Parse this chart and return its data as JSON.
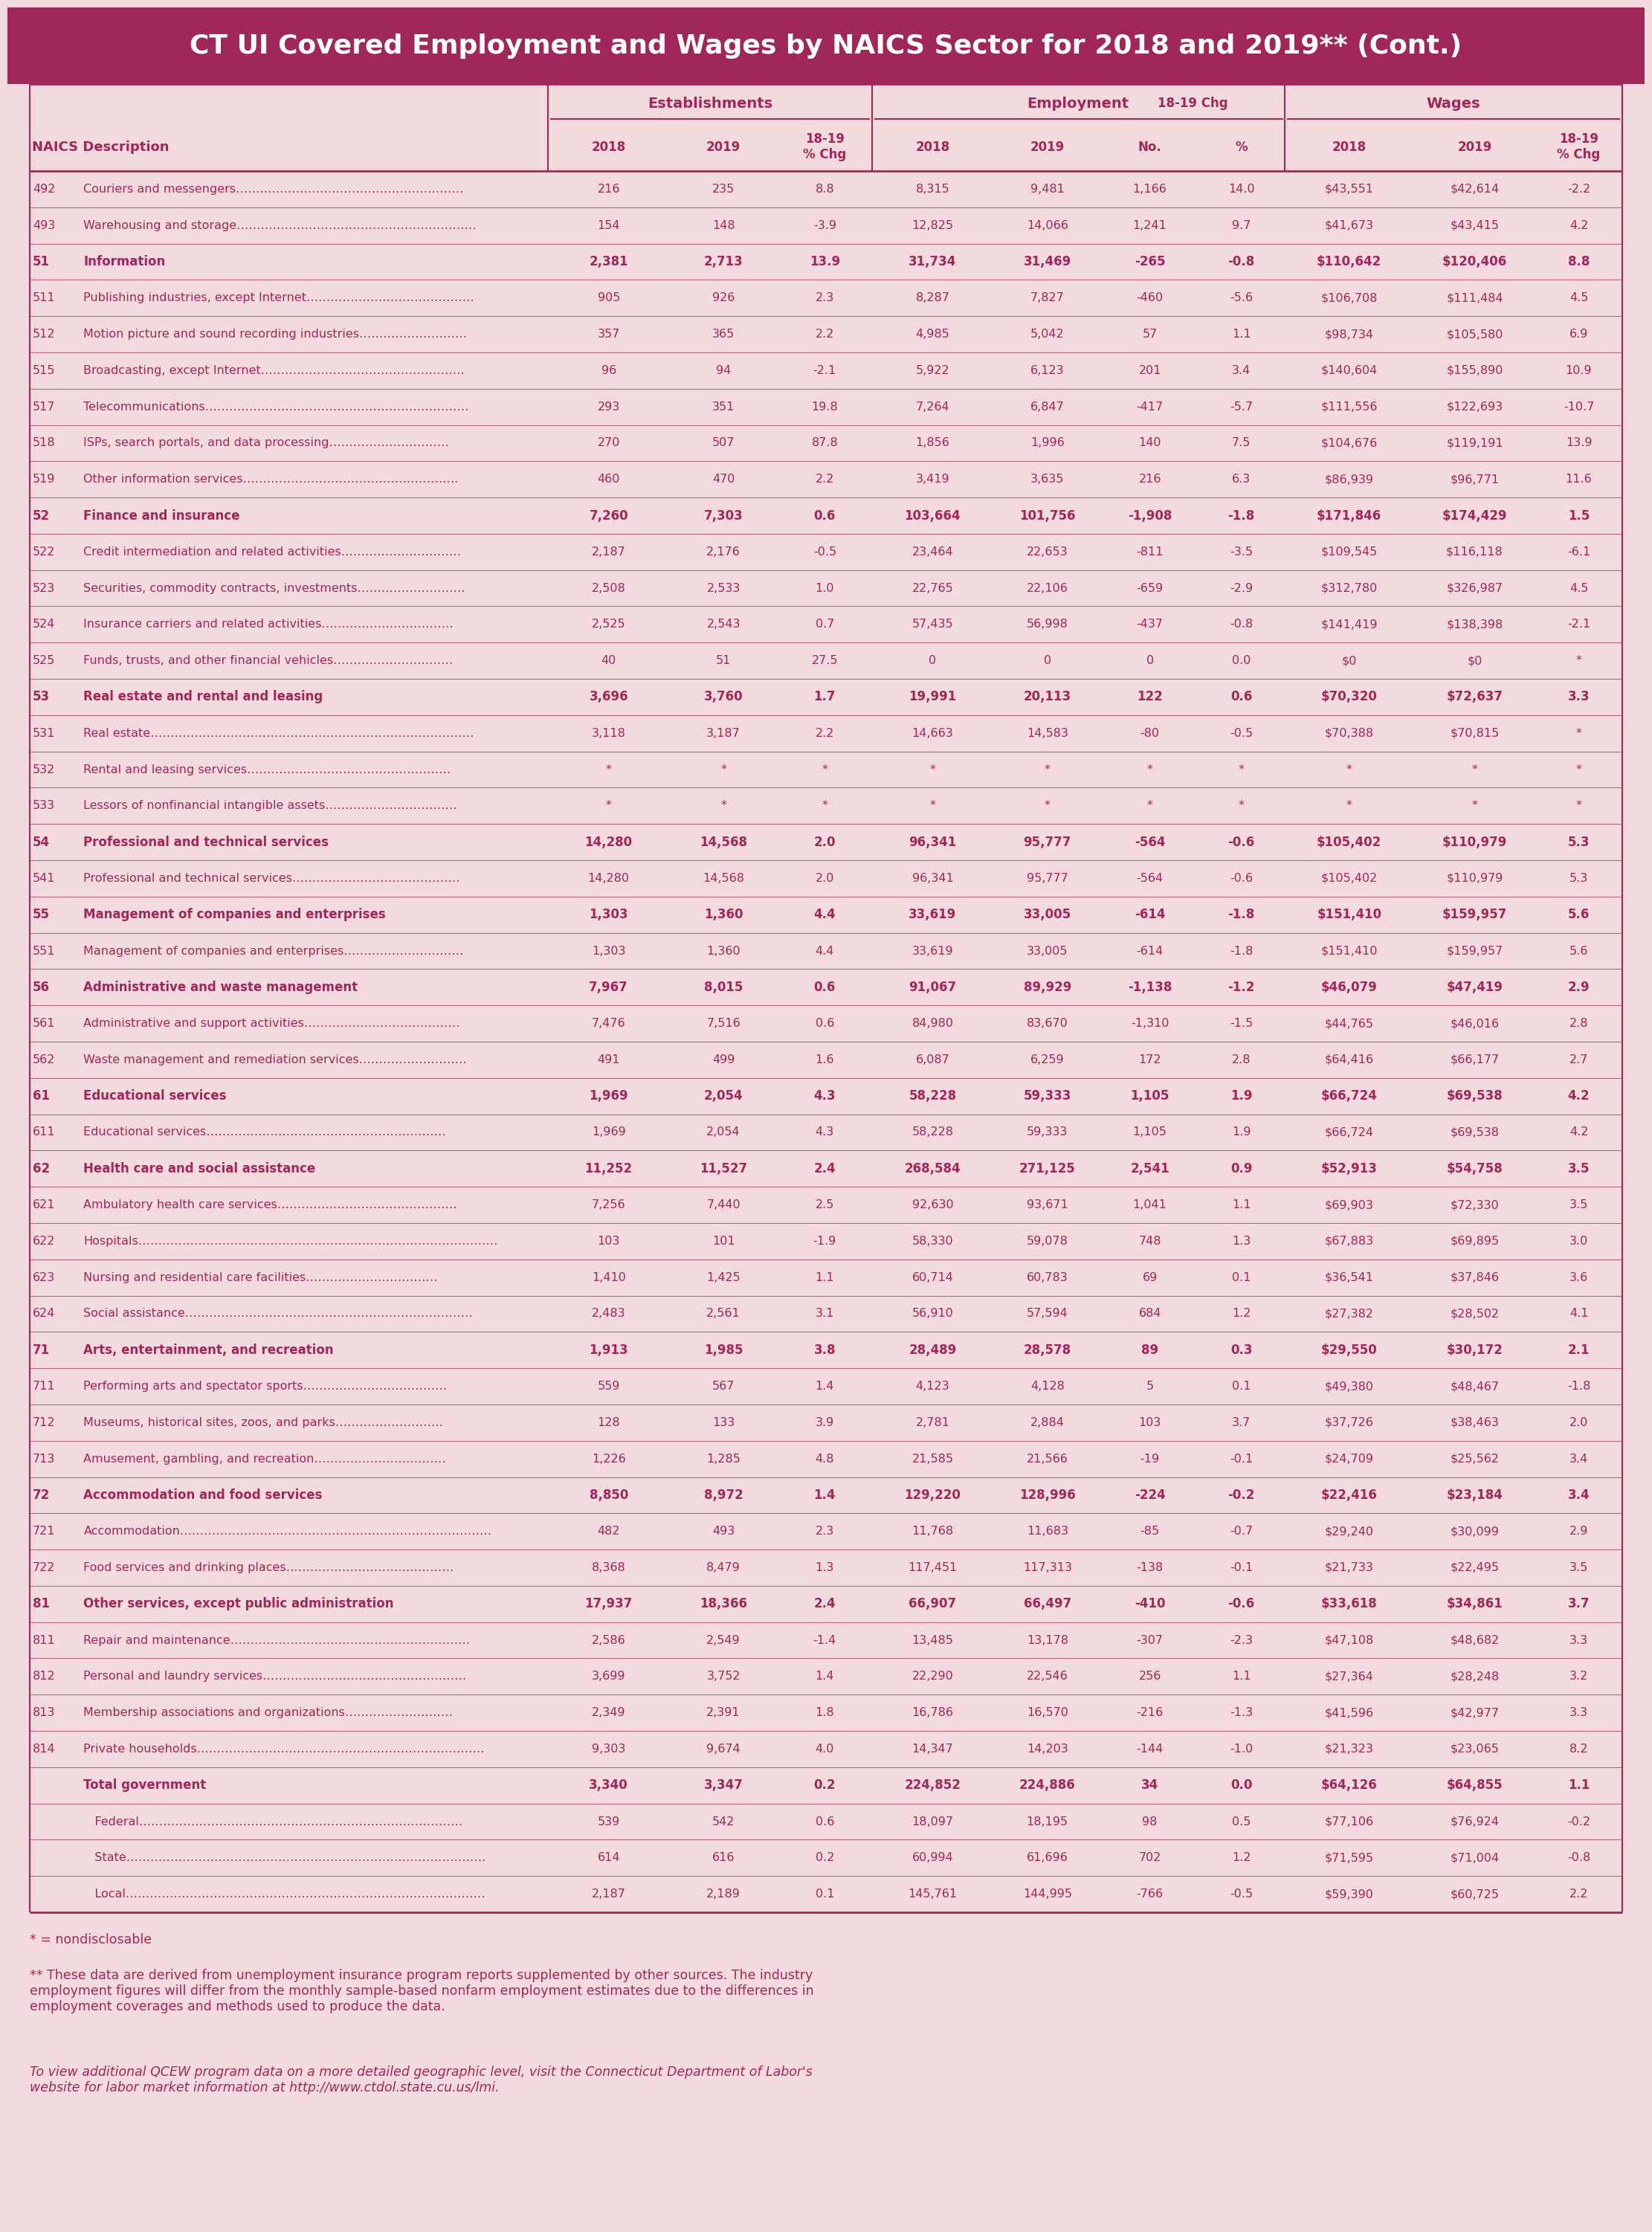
{
  "title": "CT UI Covered Employment and Wages by NAICS Sector for 2018 and 2019** (Cont.)",
  "title_bg": "#A0275A",
  "title_fg": "#FFFFFF",
  "bg_color": "#F2DADE",
  "fg_color": "#A0275A",
  "border_color": "#A0275A",
  "footnote1": "* = nondisclosable",
  "footnote2": "** These data are derived from unemployment insurance program reports supplemented by other sources. The industry employment figures will differ from the monthly sample-based nonfarm employment estimates due to the differences in employment coverages and methods used to produce the data.",
  "footnote3": "To view additional QCEW program data on a more detailed geographic level, visit the Connecticut Department of Labor's website for labor market information at http://www.ctdol.state.cu.us/lmi.",
  "rows": [
    {
      "code": "492",
      "desc": "Couriers and messengers…………………………………………………",
      "bold": false,
      "sector": false,
      "vals": [
        "216",
        "235",
        "8.8",
        "8,315",
        "9,481",
        "1,166",
        "14.0",
        "$43,551",
        "$42,614",
        "-2.2"
      ]
    },
    {
      "code": "493",
      "desc": "Warehousing and storage……………………………………………………",
      "bold": false,
      "sector": false,
      "vals": [
        "154",
        "148",
        "-3.9",
        "12,825",
        "14,066",
        "1,241",
        "9.7",
        "$41,673",
        "$43,415",
        "4.2"
      ]
    },
    {
      "code": "51",
      "desc": "Information",
      "bold": true,
      "sector": true,
      "vals": [
        "2,381",
        "2,713",
        "13.9",
        "31,734",
        "31,469",
        "-265",
        "-0.8",
        "$110,642",
        "$120,406",
        "8.8"
      ]
    },
    {
      "code": "511",
      "desc": "Publishing industries, except Internet……………………………………",
      "bold": false,
      "sector": false,
      "vals": [
        "905",
        "926",
        "2.3",
        "8,287",
        "7,827",
        "-460",
        "-5.6",
        "$106,708",
        "$111,484",
        "4.5"
      ]
    },
    {
      "code": "512",
      "desc": "Motion picture and sound recording industries………………………",
      "bold": false,
      "sector": false,
      "vals": [
        "357",
        "365",
        "2.2",
        "4,985",
        "5,042",
        "57",
        "1.1",
        "$98,734",
        "$105,580",
        "6.9"
      ]
    },
    {
      "code": "515",
      "desc": "Broadcasting, except Internet……………………………………………",
      "bold": false,
      "sector": false,
      "vals": [
        "96",
        "94",
        "-2.1",
        "5,922",
        "6,123",
        "201",
        "3.4",
        "$140,604",
        "$155,890",
        "10.9"
      ]
    },
    {
      "code": "517",
      "desc": "Telecommunications…………………………………………………………",
      "bold": false,
      "sector": false,
      "vals": [
        "293",
        "351",
        "19.8",
        "7,264",
        "6,847",
        "-417",
        "-5.7",
        "$111,556",
        "$122,693",
        "-10.7"
      ]
    },
    {
      "code": "518",
      "desc": "ISPs, search portals, and data processing…………………………",
      "bold": false,
      "sector": false,
      "vals": [
        "270",
        "507",
        "87.8",
        "1,856",
        "1,996",
        "140",
        "7.5",
        "$104,676",
        "$119,191",
        "13.9"
      ]
    },
    {
      "code": "519",
      "desc": "Other information services………………………………………………",
      "bold": false,
      "sector": false,
      "vals": [
        "460",
        "470",
        "2.2",
        "3,419",
        "3,635",
        "216",
        "6.3",
        "$86,939",
        "$96,771",
        "11.6"
      ]
    },
    {
      "code": "52",
      "desc": "Finance and insurance",
      "bold": true,
      "sector": true,
      "vals": [
        "7,260",
        "7,303",
        "0.6",
        "103,664",
        "101,756",
        "-1,908",
        "-1.8",
        "$171,846",
        "$174,429",
        "1.5"
      ]
    },
    {
      "code": "522",
      "desc": "Credit intermediation and related activities…………………………",
      "bold": false,
      "sector": false,
      "vals": [
        "2,187",
        "2,176",
        "-0.5",
        "23,464",
        "22,653",
        "-811",
        "-3.5",
        "$109,545",
        "$116,118",
        "-6.1"
      ]
    },
    {
      "code": "523",
      "desc": "Securities, commodity contracts, investments………………………",
      "bold": false,
      "sector": false,
      "vals": [
        "2,508",
        "2,533",
        "1.0",
        "22,765",
        "22,106",
        "-659",
        "-2.9",
        "$312,780",
        "$326,987",
        "4.5"
      ]
    },
    {
      "code": "524",
      "desc": "Insurance carriers and related activities……………………………",
      "bold": false,
      "sector": false,
      "vals": [
        "2,525",
        "2,543",
        "0.7",
        "57,435",
        "56,998",
        "-437",
        "-0.8",
        "$141,419",
        "$138,398",
        "-2.1"
      ]
    },
    {
      "code": "525",
      "desc": "Funds, trusts, and other financial vehicles…………………………",
      "bold": false,
      "sector": false,
      "vals": [
        "40",
        "51",
        "27.5",
        "0",
        "0",
        "0",
        "0.0",
        "$0",
        "$0",
        "*"
      ]
    },
    {
      "code": "53",
      "desc": "Real estate and rental and leasing",
      "bold": true,
      "sector": true,
      "vals": [
        "3,696",
        "3,760",
        "1.7",
        "19,991",
        "20,113",
        "122",
        "0.6",
        "$70,320",
        "$72,637",
        "3.3"
      ]
    },
    {
      "code": "531",
      "desc": "Real estate………………………………………………………………………",
      "bold": false,
      "sector": false,
      "vals": [
        "3,118",
        "3,187",
        "2.2",
        "14,663",
        "14,583",
        "-80",
        "-0.5",
        "$70,388",
        "$70,815",
        "*"
      ]
    },
    {
      "code": "532",
      "desc": "Rental and leasing services……………………………………………",
      "bold": false,
      "sector": false,
      "vals": [
        "*",
        "*",
        "*",
        "*",
        "*",
        "*",
        "*",
        "*",
        "*",
        "*"
      ]
    },
    {
      "code": "533",
      "desc": "Lessors of nonfinancial intangible assets……………………………",
      "bold": false,
      "sector": false,
      "vals": [
        "*",
        "*",
        "*",
        "*",
        "*",
        "*",
        "*",
        "*",
        "*",
        "*"
      ]
    },
    {
      "code": "54",
      "desc": "Professional and technical services",
      "bold": true,
      "sector": true,
      "vals": [
        "14,280",
        "14,568",
        "2.0",
        "96,341",
        "95,777",
        "-564",
        "-0.6",
        "$105,402",
        "$110,979",
        "5.3"
      ]
    },
    {
      "code": "541",
      "desc": "Professional and technical services……………………………………",
      "bold": false,
      "sector": false,
      "vals": [
        "14,280",
        "14,568",
        "2.0",
        "96,341",
        "95,777",
        "-564",
        "-0.6",
        "$105,402",
        "$110,979",
        "5.3"
      ]
    },
    {
      "code": "55",
      "desc": "Management of companies and enterprises",
      "bold": true,
      "sector": true,
      "vals": [
        "1,303",
        "1,360",
        "4.4",
        "33,619",
        "33,005",
        "-614",
        "-1.8",
        "$151,410",
        "$159,957",
        "5.6"
      ]
    },
    {
      "code": "551",
      "desc": "Management of companies and enterprises…………………………",
      "bold": false,
      "sector": false,
      "vals": [
        "1,303",
        "1,360",
        "4.4",
        "33,619",
        "33,005",
        "-614",
        "-1.8",
        "$151,410",
        "$159,957",
        "5.6"
      ]
    },
    {
      "code": "56",
      "desc": "Administrative and waste management",
      "bold": true,
      "sector": true,
      "vals": [
        "7,967",
        "8,015",
        "0.6",
        "91,067",
        "89,929",
        "-1,138",
        "-1.2",
        "$46,079",
        "$47,419",
        "2.9"
      ]
    },
    {
      "code": "561",
      "desc": "Administrative and support activities…………………………………",
      "bold": false,
      "sector": false,
      "vals": [
        "7,476",
        "7,516",
        "0.6",
        "84,980",
        "83,670",
        "-1,310",
        "-1.5",
        "$44,765",
        "$46,016",
        "2.8"
      ]
    },
    {
      "code": "562",
      "desc": "Waste management and remediation services………………………",
      "bold": false,
      "sector": false,
      "vals": [
        "491",
        "499",
        "1.6",
        "6,087",
        "6,259",
        "172",
        "2.8",
        "$64,416",
        "$66,177",
        "2.7"
      ]
    },
    {
      "code": "61",
      "desc": "Educational services",
      "bold": true,
      "sector": true,
      "vals": [
        "1,969",
        "2,054",
        "4.3",
        "58,228",
        "59,333",
        "1,105",
        "1.9",
        "$66,724",
        "$69,538",
        "4.2"
      ]
    },
    {
      "code": "611",
      "desc": "Educational services……………………………………………………",
      "bold": false,
      "sector": false,
      "vals": [
        "1,969",
        "2,054",
        "4.3",
        "58,228",
        "59,333",
        "1,105",
        "1.9",
        "$66,724",
        "$69,538",
        "4.2"
      ]
    },
    {
      "code": "62",
      "desc": "Health care and social assistance",
      "bold": true,
      "sector": true,
      "vals": [
        "11,252",
        "11,527",
        "2.4",
        "268,584",
        "271,125",
        "2,541",
        "0.9",
        "$52,913",
        "$54,758",
        "3.5"
      ]
    },
    {
      "code": "621",
      "desc": "Ambulatory health care services………………………………………",
      "bold": false,
      "sector": false,
      "vals": [
        "7,256",
        "7,440",
        "2.5",
        "92,630",
        "93,671",
        "1,041",
        "1.1",
        "$69,903",
        "$72,330",
        "3.5"
      ]
    },
    {
      "code": "622",
      "desc": "Hospitals………………………………………………………………………………",
      "bold": false,
      "sector": false,
      "vals": [
        "103",
        "101",
        "-1.9",
        "58,330",
        "59,078",
        "748",
        "1.3",
        "$67,883",
        "$69,895",
        "3.0"
      ]
    },
    {
      "code": "623",
      "desc": "Nursing and residential care facilities……………………………",
      "bold": false,
      "sector": false,
      "vals": [
        "1,410",
        "1,425",
        "1.1",
        "60,714",
        "60,783",
        "69",
        "0.1",
        "$36,541",
        "$37,846",
        "3.6"
      ]
    },
    {
      "code": "624",
      "desc": "Social assistance………………………………………………………………",
      "bold": false,
      "sector": false,
      "vals": [
        "2,483",
        "2,561",
        "3.1",
        "56,910",
        "57,594",
        "684",
        "1.2",
        "$27,382",
        "$28,502",
        "4.1"
      ]
    },
    {
      "code": "71",
      "desc": "Arts, entertainment, and recreation",
      "bold": true,
      "sector": true,
      "vals": [
        "1,913",
        "1,985",
        "3.8",
        "28,489",
        "28,578",
        "89",
        "0.3",
        "$29,550",
        "$30,172",
        "2.1"
      ]
    },
    {
      "code": "711",
      "desc": "Performing arts and spectator sports………………………………",
      "bold": false,
      "sector": false,
      "vals": [
        "559",
        "567",
        "1.4",
        "4,123",
        "4,128",
        "5",
        "0.1",
        "$49,380",
        "$48,467",
        "-1.8"
      ]
    },
    {
      "code": "712",
      "desc": "Museums, historical sites, zoos, and parks………………………",
      "bold": false,
      "sector": false,
      "vals": [
        "128",
        "133",
        "3.9",
        "2,781",
        "2,884",
        "103",
        "3.7",
        "$37,726",
        "$38,463",
        "2.0"
      ]
    },
    {
      "code": "713",
      "desc": "Amusement, gambling, and recreation……………………………",
      "bold": false,
      "sector": false,
      "vals": [
        "1,226",
        "1,285",
        "4.8",
        "21,585",
        "21,566",
        "-19",
        "-0.1",
        "$24,709",
        "$25,562",
        "3.4"
      ]
    },
    {
      "code": "72",
      "desc": "Accommodation and food services",
      "bold": true,
      "sector": true,
      "vals": [
        "8,850",
        "8,972",
        "1.4",
        "129,220",
        "128,996",
        "-224",
        "-0.2",
        "$22,416",
        "$23,184",
        "3.4"
      ]
    },
    {
      "code": "721",
      "desc": "Accommodation……………………………………………………………………",
      "bold": false,
      "sector": false,
      "vals": [
        "482",
        "493",
        "2.3",
        "11,768",
        "11,683",
        "-85",
        "-0.7",
        "$29,240",
        "$30,099",
        "2.9"
      ]
    },
    {
      "code": "722",
      "desc": "Food services and drinking places……………………………………",
      "bold": false,
      "sector": false,
      "vals": [
        "8,368",
        "8,479",
        "1.3",
        "117,451",
        "117,313",
        "-138",
        "-0.1",
        "$21,733",
        "$22,495",
        "3.5"
      ]
    },
    {
      "code": "81",
      "desc": "Other services, except public administration",
      "bold": true,
      "sector": true,
      "vals": [
        "17,937",
        "18,366",
        "2.4",
        "66,907",
        "66,497",
        "-410",
        "-0.6",
        "$33,618",
        "$34,861",
        "3.7"
      ]
    },
    {
      "code": "811",
      "desc": "Repair and maintenance……………………………………………………",
      "bold": false,
      "sector": false,
      "vals": [
        "2,586",
        "2,549",
        "-1.4",
        "13,485",
        "13,178",
        "-307",
        "-2.3",
        "$47,108",
        "$48,682",
        "3.3"
      ]
    },
    {
      "code": "812",
      "desc": "Personal and laundry services……………………………………………",
      "bold": false,
      "sector": false,
      "vals": [
        "3,699",
        "3,752",
        "1.4",
        "22,290",
        "22,546",
        "256",
        "1.1",
        "$27,364",
        "$28,248",
        "3.2"
      ]
    },
    {
      "code": "813",
      "desc": "Membership associations and organizations………………………",
      "bold": false,
      "sector": false,
      "vals": [
        "2,349",
        "2,391",
        "1.8",
        "16,786",
        "16,570",
        "-216",
        "-1.3",
        "$41,596",
        "$42,977",
        "3.3"
      ]
    },
    {
      "code": "814",
      "desc": "Private households………………………………………………………………",
      "bold": false,
      "sector": false,
      "vals": [
        "9,303",
        "9,674",
        "4.0",
        "14,347",
        "14,203",
        "-144",
        "-1.0",
        "$21,323",
        "$23,065",
        "8.2"
      ]
    },
    {
      "code": "",
      "desc": "Total government",
      "bold": true,
      "sector": false,
      "vals": [
        "3,340",
        "3,347",
        "0.2",
        "224,852",
        "224,886",
        "34",
        "0.0",
        "$64,126",
        "$64,855",
        "1.1"
      ]
    },
    {
      "code": "",
      "desc": "   Federal………………………………………………………………………",
      "bold": false,
      "sector": false,
      "vals": [
        "539",
        "542",
        "0.6",
        "18,097",
        "18,195",
        "98",
        "0.5",
        "$77,106",
        "$76,924",
        "-0.2"
      ]
    },
    {
      "code": "",
      "desc": "   State………………………………………………………………………………",
      "bold": false,
      "sector": false,
      "vals": [
        "614",
        "616",
        "0.2",
        "60,994",
        "61,696",
        "702",
        "1.2",
        "$71,595",
        "$71,004",
        "-0.8"
      ]
    },
    {
      "code": "",
      "desc": "   Local………………………………………………………………………………",
      "bold": false,
      "sector": false,
      "vals": [
        "2,187",
        "2,189",
        "0.1",
        "145,761",
        "144,995",
        "-766",
        "-0.5",
        "$59,390",
        "$60,725",
        "2.2"
      ]
    }
  ]
}
